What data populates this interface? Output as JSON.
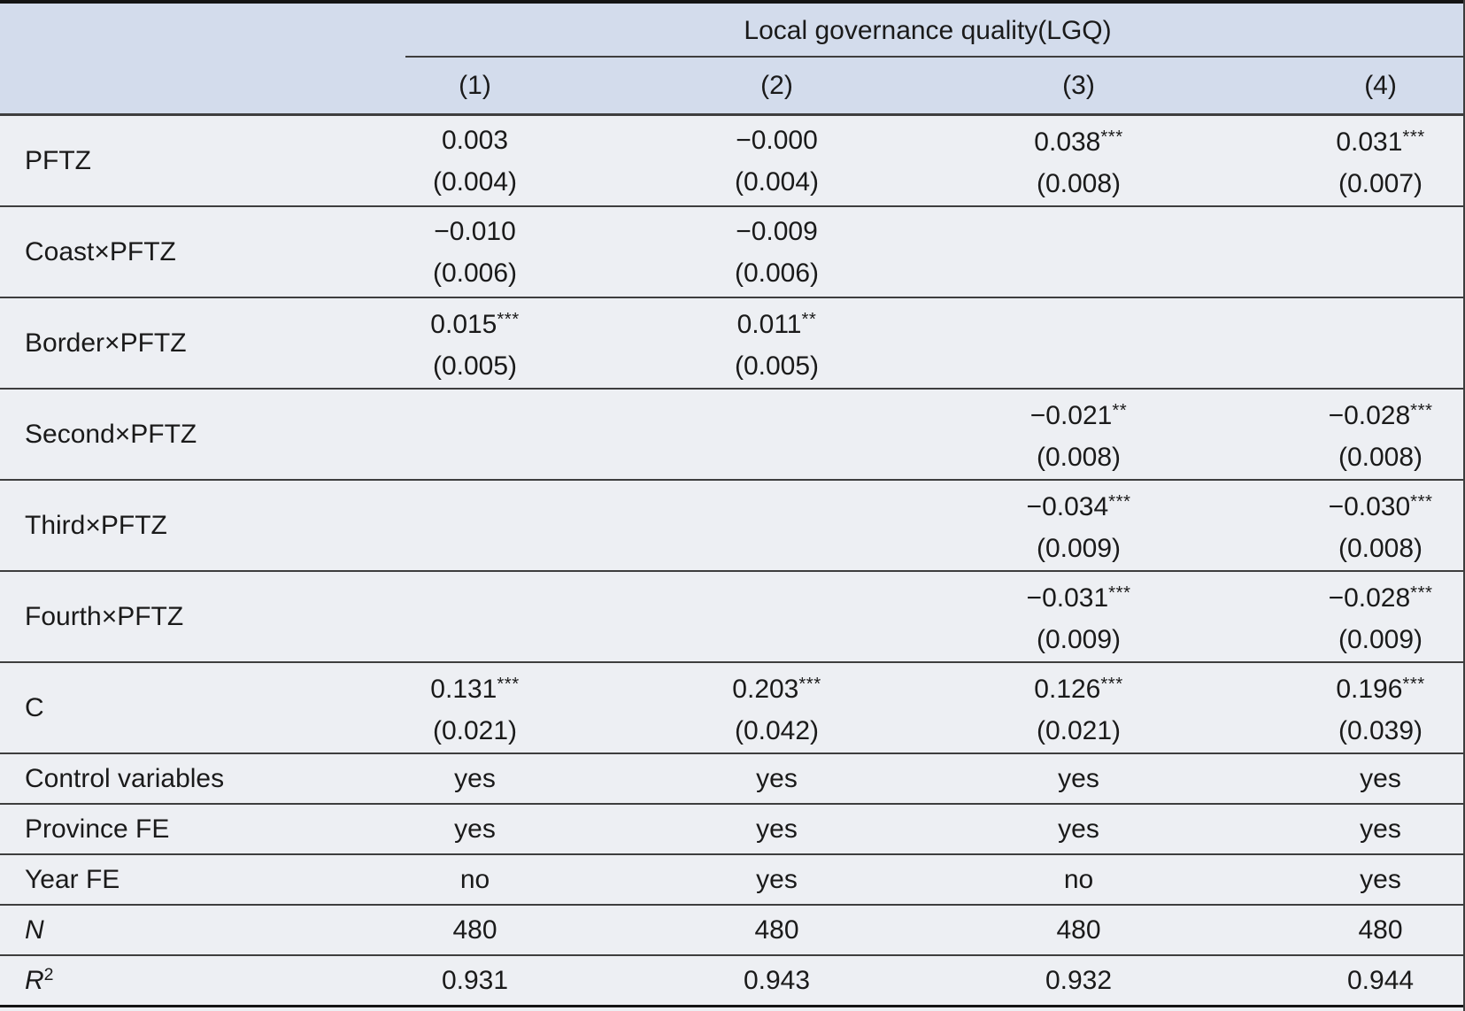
{
  "table": {
    "group_header": "Local governance quality(LGQ)",
    "column_headers": [
      "(1)",
      "(2)",
      "(3)",
      "(4)"
    ],
    "coef_rows": [
      {
        "label": "PFTZ",
        "cells": [
          {
            "est": "0.003",
            "stars": "",
            "se": "(0.004)"
          },
          {
            "est": "−0.000",
            "stars": "",
            "se": "(0.004)"
          },
          {
            "est": "0.038",
            "stars": "***",
            "se": "(0.008)"
          },
          {
            "est": "0.031",
            "stars": "***",
            "se": "(0.007)"
          }
        ]
      },
      {
        "label": "Coast×PFTZ",
        "cells": [
          {
            "est": "−0.010",
            "stars": "",
            "se": "(0.006)"
          },
          {
            "est": "−0.009",
            "stars": "",
            "se": "(0.006)"
          },
          null,
          null
        ]
      },
      {
        "label": "Border×PFTZ",
        "cells": [
          {
            "est": "0.015",
            "stars": "***",
            "se": "(0.005)"
          },
          {
            "est": "0.011",
            "stars": "**",
            "se": "(0.005)"
          },
          null,
          null
        ]
      },
      {
        "label": "Second×PFTZ",
        "cells": [
          null,
          null,
          {
            "est": "−0.021",
            "stars": "**",
            "se": "(0.008)"
          },
          {
            "est": "−0.028",
            "stars": "***",
            "se": "(0.008)"
          }
        ]
      },
      {
        "label": "Third×PFTZ",
        "cells": [
          null,
          null,
          {
            "est": "−0.034",
            "stars": "***",
            "se": "(0.009)"
          },
          {
            "est": "−0.030",
            "stars": "***",
            "se": "(0.008)"
          }
        ]
      },
      {
        "label": "Fourth×PFTZ",
        "cells": [
          null,
          null,
          {
            "est": "−0.031",
            "stars": "***",
            "se": "(0.009)"
          },
          {
            "est": "−0.028",
            "stars": "***",
            "se": "(0.009)"
          }
        ]
      },
      {
        "label": "C",
        "cells": [
          {
            "est": "0.131",
            "stars": "***",
            "se": "(0.021)"
          },
          {
            "est": "0.203",
            "stars": "***",
            "se": "(0.042)"
          },
          {
            "est": "0.126",
            "stars": "***",
            "se": "(0.021)"
          },
          {
            "est": "0.196",
            "stars": "***",
            "se": "(0.039)"
          }
        ]
      }
    ],
    "info_rows": [
      {
        "label": "Control variables",
        "italic": false,
        "sup": "",
        "values": [
          "yes",
          "yes",
          "yes",
          "yes"
        ]
      },
      {
        "label": "Province FE",
        "italic": false,
        "sup": "",
        "values": [
          "yes",
          "yes",
          "yes",
          "yes"
        ]
      },
      {
        "label": "Year FE",
        "italic": false,
        "sup": "",
        "values": [
          "no",
          "yes",
          "no",
          "yes"
        ]
      },
      {
        "label": "N",
        "italic": true,
        "sup": "",
        "values": [
          "480",
          "480",
          "480",
          "480"
        ]
      },
      {
        "label": "R",
        "italic": true,
        "sup": "2",
        "values": [
          "0.931",
          "0.943",
          "0.932",
          "0.944"
        ]
      }
    ],
    "colors": {
      "header_bg": "#d3dcec",
      "body_bg": "#edeff3",
      "rule": "#3e3e3e",
      "frame": "#141414",
      "text": "#1a1a1a"
    }
  }
}
